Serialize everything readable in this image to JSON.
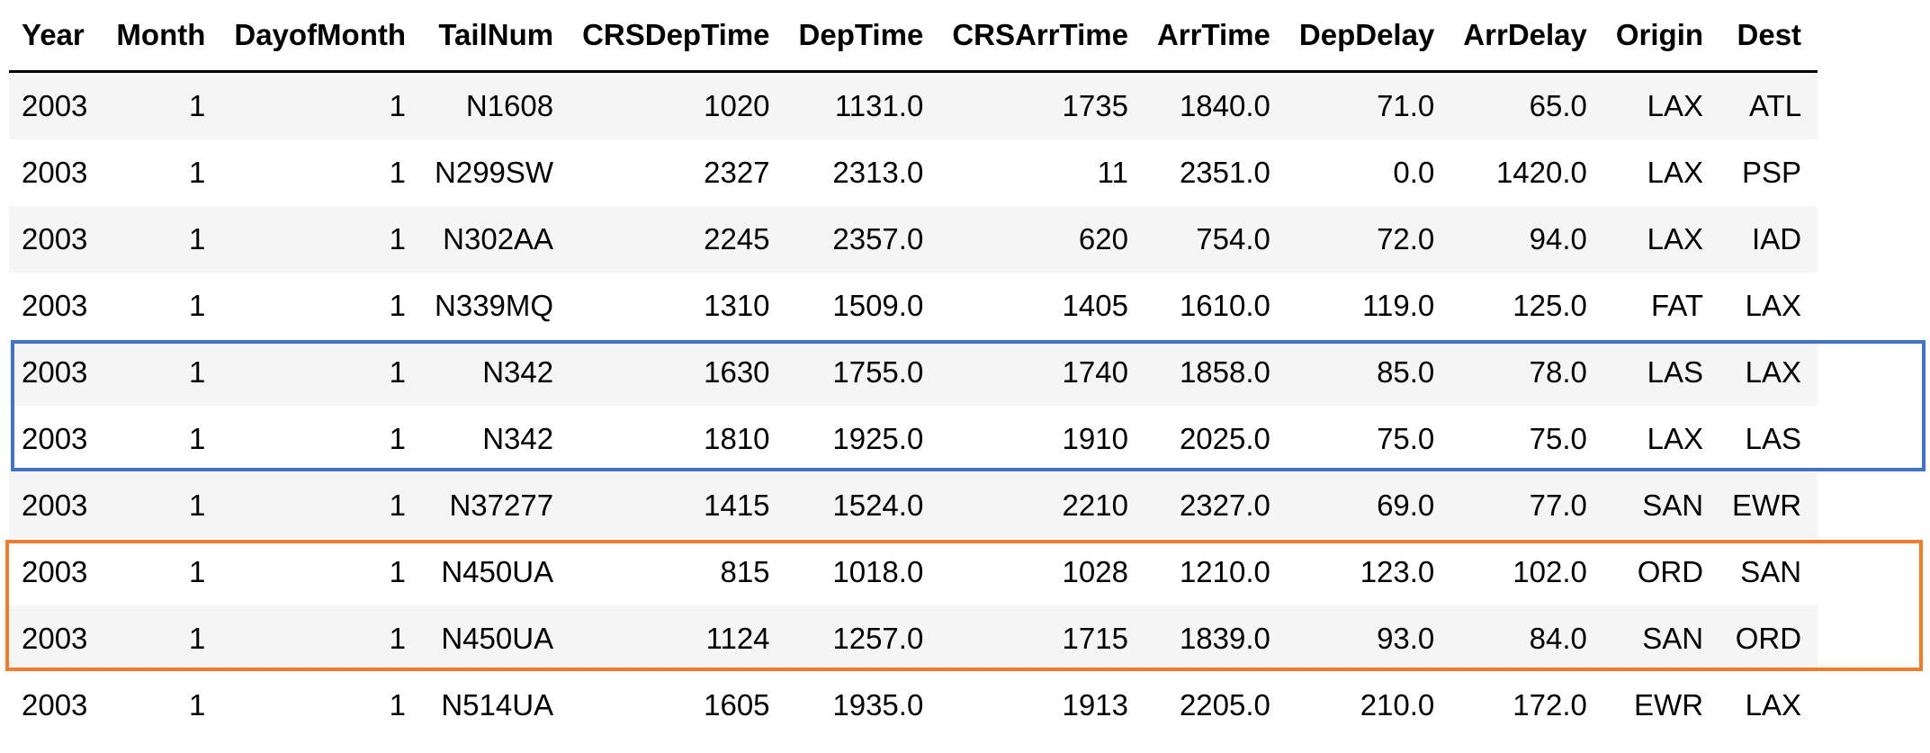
{
  "table": {
    "columns": [
      "Year",
      "Month",
      "DayofMonth",
      "TailNum",
      "CRSDepTime",
      "DepTime",
      "CRSArrTime",
      "ArrTime",
      "DepDelay",
      "ArrDelay",
      "Origin",
      "Dest"
    ],
    "rows": [
      [
        "2003",
        "1",
        "1",
        "N1608",
        "1020",
        "1131.0",
        "1735",
        "1840.0",
        "71.0",
        "65.0",
        "LAX",
        "ATL"
      ],
      [
        "2003",
        "1",
        "1",
        "N299SW",
        "2327",
        "2313.0",
        "11",
        "2351.0",
        "0.0",
        "1420.0",
        "LAX",
        "PSP"
      ],
      [
        "2003",
        "1",
        "1",
        "N302AA",
        "2245",
        "2357.0",
        "620",
        "754.0",
        "72.0",
        "94.0",
        "LAX",
        "IAD"
      ],
      [
        "2003",
        "1",
        "1",
        "N339MQ",
        "1310",
        "1509.0",
        "1405",
        "1610.0",
        "119.0",
        "125.0",
        "FAT",
        "LAX"
      ],
      [
        "2003",
        "1",
        "1",
        "N342",
        "1630",
        "1755.0",
        "1740",
        "1858.0",
        "85.0",
        "78.0",
        "LAS",
        "LAX"
      ],
      [
        "2003",
        "1",
        "1",
        "N342",
        "1810",
        "1925.0",
        "1910",
        "2025.0",
        "75.0",
        "75.0",
        "LAX",
        "LAS"
      ],
      [
        "2003",
        "1",
        "1",
        "N37277",
        "1415",
        "1524.0",
        "2210",
        "2327.0",
        "69.0",
        "77.0",
        "SAN",
        "EWR"
      ],
      [
        "2003",
        "1",
        "1",
        "N450UA",
        "815",
        "1018.0",
        "1028",
        "1210.0",
        "123.0",
        "102.0",
        "ORD",
        "SAN"
      ],
      [
        "2003",
        "1",
        "1",
        "N450UA",
        "1124",
        "1257.0",
        "1715",
        "1839.0",
        "93.0",
        "84.0",
        "SAN",
        "ORD"
      ],
      [
        "2003",
        "1",
        "1",
        "N514UA",
        "1605",
        "1935.0",
        "1913",
        "2205.0",
        "210.0",
        "172.0",
        "EWR",
        "LAX"
      ]
    ]
  },
  "highlights": {
    "blue": {
      "color": "#4472c4"
    },
    "orange": {
      "color": "#ed7d31"
    }
  }
}
